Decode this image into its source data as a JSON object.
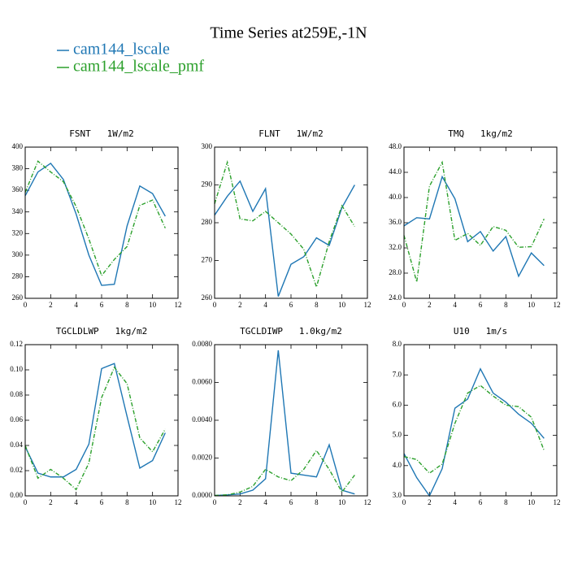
{
  "title": "Time Series at259E,-1N",
  "chart_data": [
    {
      "type": "line",
      "title": "FSNT   1W/m2",
      "x": [
        0,
        1,
        2,
        3,
        4,
        5,
        6,
        7,
        8,
        9,
        10,
        11
      ],
      "xlim": [
        0,
        12
      ],
      "xticks": [
        0,
        2,
        4,
        6,
        8,
        10,
        12
      ],
      "ylim": [
        260,
        400
      ],
      "yticks": [
        260,
        280,
        300,
        320,
        340,
        360,
        380,
        400
      ],
      "series": [
        {
          "name": "cam144_lscale",
          "color": "#1f77b4",
          "values": [
            355,
            377,
            385,
            370,
            338,
            300,
            272,
            273,
            327,
            364,
            357,
            336
          ]
        },
        {
          "name": "cam144_lscale_pmf",
          "color": "#2ca02c",
          "values": [
            358,
            387,
            377,
            368,
            345,
            315,
            281,
            296,
            308,
            346,
            351,
            325
          ]
        }
      ]
    },
    {
      "type": "line",
      "title": "FLNT   1W/m2",
      "x": [
        0,
        1,
        2,
        3,
        4,
        5,
        6,
        7,
        8,
        9,
        10,
        11
      ],
      "xlim": [
        0,
        12
      ],
      "xticks": [
        0,
        2,
        4,
        6,
        8,
        10,
        12
      ],
      "ylim": [
        260,
        300
      ],
      "yticks": [
        260,
        270,
        280,
        290,
        300
      ],
      "series": [
        {
          "name": "cam144_lscale",
          "color": "#1f77b4",
          "values": [
            282,
            287,
            291,
            283,
            289,
            260.5,
            269,
            271,
            276,
            274,
            284,
            290
          ]
        },
        {
          "name": "cam144_lscale_pmf",
          "color": "#2ca02c",
          "values": [
            285,
            296,
            281,
            280.5,
            283,
            280,
            277,
            273,
            263,
            275,
            284.5,
            279
          ]
        }
      ]
    },
    {
      "type": "line",
      "title": "TMQ   1kg/m2",
      "x": [
        0,
        1,
        2,
        3,
        4,
        5,
        6,
        7,
        8,
        9,
        10,
        11
      ],
      "xlim": [
        0,
        12
      ],
      "xticks": [
        0,
        2,
        4,
        6,
        8,
        10,
        12
      ],
      "ylim": [
        24,
        48
      ],
      "yticks": [
        {
          "value": 24,
          "label": "24.0"
        },
        {
          "value": 28,
          "label": "28.0"
        },
        {
          "value": 32,
          "label": "32.0"
        },
        {
          "value": 36,
          "label": "36.0"
        },
        {
          "value": 40,
          "label": "40.0"
        },
        {
          "value": 44,
          "label": "44.0"
        },
        {
          "value": 48,
          "label": "48.0"
        }
      ],
      "series": [
        {
          "name": "cam144_lscale",
          "color": "#1f77b4",
          "values": [
            35.5,
            36.8,
            36.6,
            43.3,
            39.8,
            33.0,
            34.6,
            31.5,
            33.8,
            27.5,
            31.2,
            29.2
          ]
        },
        {
          "name": "cam144_lscale_pmf",
          "color": "#2ca02c",
          "values": [
            34.0,
            26.6,
            41.8,
            45.6,
            33.2,
            34.3,
            32.4,
            35.4,
            34.8,
            32.1,
            32.2,
            36.6
          ]
        }
      ]
    },
    {
      "type": "line",
      "title": "TGCLDLWP   1kg/m2",
      "x": [
        0,
        1,
        2,
        3,
        4,
        5,
        6,
        7,
        8,
        9,
        10,
        11
      ],
      "xlim": [
        0,
        12
      ],
      "xticks": [
        0,
        2,
        4,
        6,
        8,
        10,
        12
      ],
      "ylim": [
        0,
        0.12
      ],
      "yticks": [
        {
          "value": 0,
          "label": "0.00"
        },
        {
          "value": 0.02,
          "label": "0.02"
        },
        {
          "value": 0.04,
          "label": "0.04"
        },
        {
          "value": 0.06,
          "label": "0.06"
        },
        {
          "value": 0.08,
          "label": "0.08"
        },
        {
          "value": 0.1,
          "label": "0.10"
        },
        {
          "value": 0.12,
          "label": "0.12"
        }
      ],
      "series": [
        {
          "name": "cam144_lscale",
          "color": "#1f77b4",
          "values": [
            0.039,
            0.018,
            0.015,
            0.015,
            0.021,
            0.041,
            0.101,
            0.105,
            0.063,
            0.022,
            0.028,
            0.05
          ]
        },
        {
          "name": "cam144_lscale_pmf",
          "color": "#2ca02c",
          "values": [
            0.04,
            0.014,
            0.021,
            0.014,
            0.005,
            0.026,
            0.078,
            0.102,
            0.089,
            0.046,
            0.035,
            0.053
          ]
        }
      ]
    },
    {
      "type": "line",
      "title": "TGCLDIWP   1.0kg/m2",
      "x": [
        0,
        1,
        2,
        3,
        4,
        5,
        6,
        7,
        8,
        9,
        10,
        11
      ],
      "xlim": [
        0,
        12
      ],
      "xticks": [
        0,
        2,
        4,
        6,
        8,
        10,
        12
      ],
      "ylim": [
        0,
        0.008
      ],
      "yticks": [
        {
          "value": 0,
          "label": "0.0000"
        },
        {
          "value": 0.002,
          "label": "0.0020"
        },
        {
          "value": 0.004,
          "label": "0.0040"
        },
        {
          "value": 0.006,
          "label": "0.0060"
        },
        {
          "value": 0.008,
          "label": "0.0080"
        }
      ],
      "series": [
        {
          "name": "cam144_lscale",
          "color": "#1f77b4",
          "values": [
            2e-05,
            5e-05,
            0.0001,
            0.0003,
            0.0009,
            0.0077,
            0.0012,
            0.0011,
            0.001,
            0.0027,
            0.0003,
            0.0001
          ]
        },
        {
          "name": "cam144_lscale_pmf",
          "color": "#2ca02c",
          "values": [
            2e-05,
            5e-05,
            0.0002,
            0.0005,
            0.0014,
            0.001,
            0.0008,
            0.0014,
            0.0024,
            0.0014,
            0.0002,
            0.0011
          ]
        }
      ]
    },
    {
      "type": "line",
      "title": "U10   1m/s",
      "x": [
        0,
        1,
        2,
        3,
        4,
        5,
        6,
        7,
        8,
        9,
        10,
        11
      ],
      "xlim": [
        0,
        12
      ],
      "xticks": [
        0,
        2,
        4,
        6,
        8,
        10,
        12
      ],
      "ylim": [
        3,
        8
      ],
      "yticks": [
        {
          "value": 3,
          "label": "3.0"
        },
        {
          "value": 4,
          "label": "4.0"
        },
        {
          "value": 5,
          "label": "5.0"
        },
        {
          "value": 6,
          "label": "6.0"
        },
        {
          "value": 7,
          "label": "7.0"
        },
        {
          "value": 8,
          "label": "8.0"
        }
      ],
      "series": [
        {
          "name": "cam144_lscale",
          "color": "#1f77b4",
          "values": [
            4.4,
            3.6,
            3.0,
            3.9,
            5.9,
            6.2,
            7.2,
            6.4,
            6.1,
            5.7,
            5.4,
            4.9
          ]
        },
        {
          "name": "cam144_lscale_pmf",
          "color": "#2ca02c",
          "values": [
            4.3,
            4.2,
            3.75,
            4.05,
            5.4,
            6.4,
            6.65,
            6.3,
            6.0,
            5.95,
            5.6,
            4.5
          ]
        }
      ]
    }
  ]
}
